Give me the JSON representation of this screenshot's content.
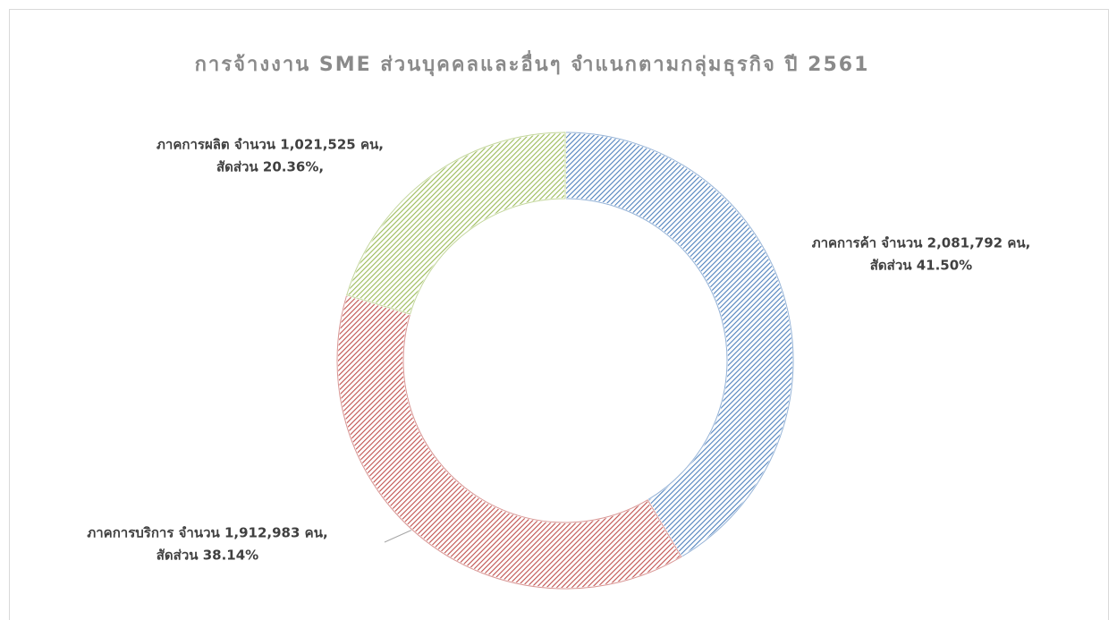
{
  "chart_data": {
    "type": "donut",
    "title": "การจ้างงาน SME ส่วนบุคคลและอื่นๆ จำแนกตามกลุ่มธุรกิจ ปี 2561",
    "values": [
      41.5,
      38.14,
      20.36
    ],
    "value_labels": [
      [
        "ภาคการค้า  จำนวน 2,081,792 คน,",
        "สัดส่วน 41.50%"
      ],
      [
        "ภาคการบริการ  จำนวน 1,912,983 คน,",
        "สัดส่วน 38.14%"
      ],
      [
        "ภาคการผลิต  จำนวน 1,021,525 คน,",
        "สัดส่วน 20.36%,"
      ]
    ],
    "colors": [
      "#4f81bd",
      "#c0504d",
      "#9bbb59"
    ]
  }
}
